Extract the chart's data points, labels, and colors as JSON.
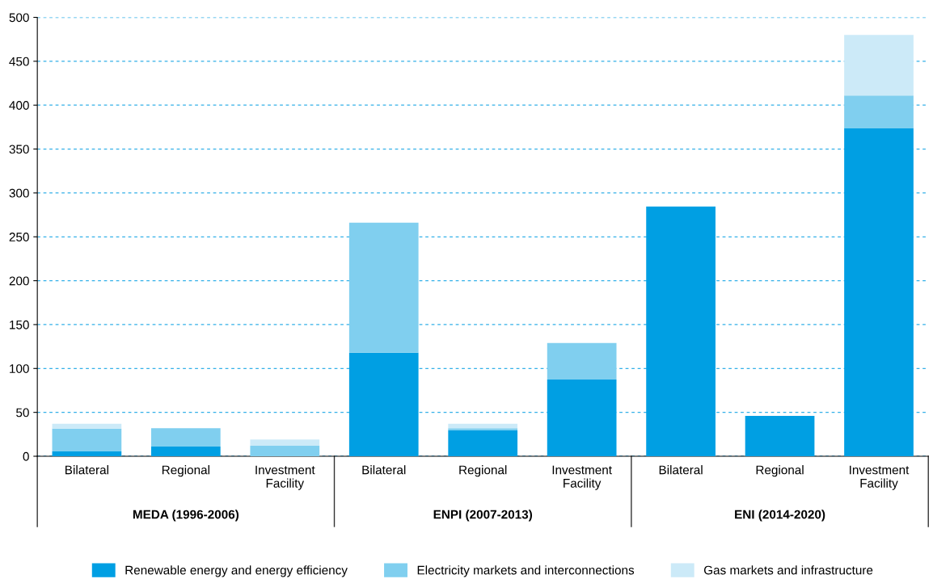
{
  "chart_data": {
    "type": "bar",
    "stacked": true,
    "categories": [
      "Bilateral",
      "Regional",
      "Investment\nFacility",
      "Bilateral",
      "Regional",
      "Investment\nFacility",
      "Bilateral",
      "Regional",
      "Investment\nFacility"
    ],
    "series": [
      {
        "name": "Renewable energy and energy efficiency",
        "color": "#009fe3",
        "values": [
          5.5,
          11,
          0,
          118,
          30,
          87.5,
          284.5,
          46,
          374
        ]
      },
      {
        "name": "Electricity markets and interconnections",
        "color": "#80cfef",
        "values": [
          26,
          21,
          12,
          148,
          2,
          41.5,
          0,
          0,
          37
        ]
      },
      {
        "name": "Gas markets and infrastructure",
        "color": "#cceaf8",
        "values": [
          5.5,
          0,
          7,
          0,
          5,
          0,
          0,
          0,
          69
        ]
      }
    ],
    "ylim": [
      0,
      500
    ],
    "yticks": [
      0,
      50,
      100,
      150,
      200,
      250,
      300,
      350,
      400,
      450,
      500
    ],
    "grid": "y",
    "legend": "bottom",
    "annotations": [
      "MEDA (1996-2006)",
      "ENPI (2007-2013)",
      "ENI (2014-2020)"
    ]
  }
}
